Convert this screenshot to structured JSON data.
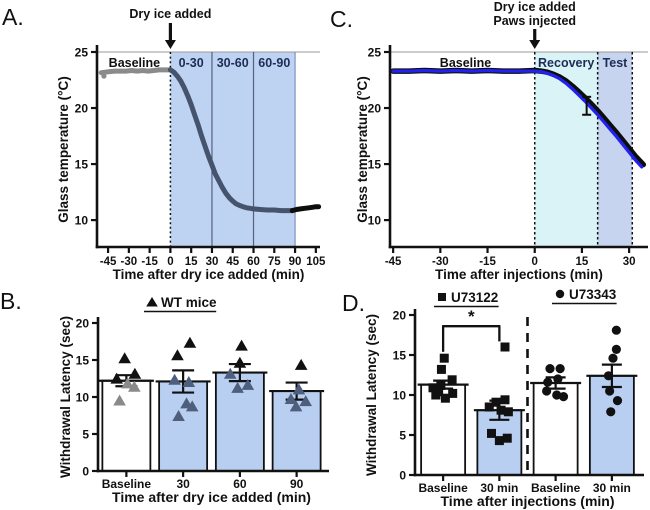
{
  "figure": {
    "background": "#ffffff"
  },
  "panel_labels": {
    "a": "A.",
    "b": "B.",
    "c": "C.",
    "d": "D."
  },
  "colors": {
    "shade_blue": "#bed2f2",
    "recovery_cyan": "#d9f3f6",
    "test_blue": "#c6d4ef",
    "blue_line": "#2222ee",
    "gray_line": "#8b8b8b",
    "slate_line": "#46536c",
    "black": "#111111",
    "gray_point": "#8a8a8a",
    "slate_point": "#4e5e7d",
    "region_label_navy": "#1e2d55"
  },
  "chart_data": [
    {
      "id": "A",
      "type": "line",
      "xlabel": "Time after dry ice added (min)",
      "ylabel": "Glass temperature (°C)",
      "xlim": [
        -53,
        108
      ],
      "ylim": [
        7.6,
        25
      ],
      "xticks": [
        -45,
        -30,
        -15,
        0,
        15,
        30,
        45,
        60,
        75,
        90,
        105
      ],
      "yticks": [
        10,
        15,
        20,
        25
      ],
      "annotation": {
        "lines": [
          "Dry ice added"
        ],
        "arrow_x": 0
      },
      "regions": [
        {
          "x0": 0,
          "x1": 90,
          "fill": "#bed2f2"
        }
      ],
      "vlines": [
        {
          "x": 0,
          "color": "#111111",
          "width": 1.5,
          "dash": "2,2.6"
        },
        {
          "x": 30,
          "color": "#54627f",
          "width": 1.2,
          "dash": ""
        },
        {
          "x": 60,
          "color": "#54627f",
          "width": 1.2,
          "dash": ""
        },
        {
          "x": 90,
          "color": "#7e93c2",
          "width": 1.2,
          "dash": ""
        }
      ],
      "region_labels": [
        {
          "text": "Baseline",
          "x": -26,
          "color": "#111111"
        },
        {
          "text": "0-30",
          "x": 15,
          "color": "#1e2d55"
        },
        {
          "text": "30-60",
          "x": 45,
          "color": "#1e2d55"
        },
        {
          "text": "60-90",
          "x": 75,
          "color": "#1e2d55"
        }
      ],
      "series": [
        {
          "name": "baseline-gray",
          "color": "#8b8b8b",
          "width": 5,
          "points": [
            [
              -50,
              23.15
            ],
            [
              -47,
              23.2
            ],
            [
              -44,
              23.25
            ],
            [
              -40,
              23.3
            ],
            [
              -36,
              23.3
            ],
            [
              -32,
              23.3
            ],
            [
              -28,
              23.35
            ],
            [
              -24,
              23.3
            ],
            [
              -20,
              23.35
            ],
            [
              -16,
              23.3
            ],
            [
              -12,
              23.35
            ],
            [
              -8,
              23.4
            ],
            [
              -4,
              23.4
            ],
            [
              0,
              23.4
            ]
          ]
        },
        {
          "name": "cooling-slate",
          "color": "#46536c",
          "width": 5,
          "points": [
            [
              0,
              23.4
            ],
            [
              2.5,
              23.2
            ],
            [
              5,
              22.85
            ],
            [
              7.5,
              22.4
            ],
            [
              10,
              21.8
            ],
            [
              12.5,
              21.1
            ],
            [
              15,
              20.3
            ],
            [
              17.5,
              19.4
            ],
            [
              20,
              18.5
            ],
            [
              22.5,
              17.5
            ],
            [
              25,
              16.6
            ],
            [
              27.5,
              15.7
            ],
            [
              30,
              14.9
            ],
            [
              32.5,
              14.1
            ],
            [
              35,
              13.5
            ],
            [
              37.5,
              12.9
            ],
            [
              40,
              12.4
            ],
            [
              42.5,
              12.0
            ],
            [
              45,
              11.7
            ],
            [
              47.5,
              11.45
            ],
            [
              50,
              11.3
            ],
            [
              52.5,
              11.2
            ],
            [
              55,
              11.1
            ],
            [
              57.5,
              11.05
            ],
            [
              60,
              11.0
            ],
            [
              65,
              10.95
            ],
            [
              70,
              10.9
            ],
            [
              75,
              10.9
            ],
            [
              80,
              10.85
            ],
            [
              85,
              10.85
            ],
            [
              88,
              10.85
            ]
          ]
        },
        {
          "name": "post-black",
          "color": "#0d0d0d",
          "width": 5,
          "points": [
            [
              88,
              10.85
            ],
            [
              91,
              10.95
            ],
            [
              94,
              11.0
            ],
            [
              97,
              11.05
            ],
            [
              100,
              11.1
            ],
            [
              103,
              11.15
            ],
            [
              105,
              11.2
            ],
            [
              107,
              11.2
            ]
          ]
        }
      ],
      "outliers": [
        {
          "x": -48,
          "y": 22.85,
          "color": "#8b8b8b"
        }
      ],
      "error_bars": []
    },
    {
      "id": "C",
      "type": "line",
      "xlabel": "Time after injections (min)",
      "ylabel": "Glass temperature (°C)",
      "xlim": [
        -46,
        36
      ],
      "ylim": [
        7.6,
        25
      ],
      "xticks": [
        -45,
        -30,
        -15,
        0,
        15,
        30
      ],
      "yticks": [
        10,
        15,
        20,
        25
      ],
      "annotation": {
        "lines": [
          "Dry ice added",
          "Paws injected"
        ],
        "arrow_x": 0
      },
      "regions": [
        {
          "x0": 0,
          "x1": 20,
          "fill": "#d9f3f6"
        },
        {
          "x0": 20,
          "x1": 31,
          "fill": "#c6d4ef"
        }
      ],
      "vlines": [
        {
          "x": 0,
          "color": "#111111",
          "width": 1.5,
          "dash": "2.5,2.5"
        },
        {
          "x": 20,
          "color": "#111111",
          "width": 1.5,
          "dash": "2.5,2.5"
        },
        {
          "x": 31,
          "color": "#111111",
          "width": 1.5,
          "dash": "2.5,2.5"
        }
      ],
      "region_labels": [
        {
          "text": "Baseline",
          "x": -22,
          "color": "#111111"
        },
        {
          "text": "Recovery",
          "x": 10,
          "color": "#1e2d55"
        },
        {
          "text": "Test",
          "x": 25.5,
          "color": "#1e2d55"
        }
      ],
      "series": [
        {
          "name": "vehicle-black",
          "color": "#0d0d0d",
          "width": 5.5,
          "points": [
            [
              -45,
              23.3
            ],
            [
              -40,
              23.3
            ],
            [
              -35,
              23.35
            ],
            [
              -30,
              23.3
            ],
            [
              -25,
              23.35
            ],
            [
              -20,
              23.3
            ],
            [
              -15,
              23.35
            ],
            [
              -10,
              23.3
            ],
            [
              -5,
              23.3
            ],
            [
              0,
              23.35
            ],
            [
              2,
              23.3
            ],
            [
              4,
              23.2
            ],
            [
              6,
              23.0
            ],
            [
              8,
              22.75
            ],
            [
              10,
              22.4
            ],
            [
              12,
              21.95
            ],
            [
              14,
              21.45
            ],
            [
              16,
              20.9
            ],
            [
              18,
              20.35
            ],
            [
              20,
              19.75
            ],
            [
              22,
              19.1
            ],
            [
              24,
              18.45
            ],
            [
              26,
              17.8
            ],
            [
              28,
              17.1
            ],
            [
              30,
              16.4
            ],
            [
              32,
              15.7
            ],
            [
              34,
              15.1
            ],
            [
              34.5,
              14.95
            ]
          ]
        },
        {
          "name": "injected-blue",
          "color": "#2222ee",
          "width": 3.2,
          "points": [
            [
              -45,
              23.3
            ],
            [
              -40,
              23.3
            ],
            [
              -35,
              23.35
            ],
            [
              -30,
              23.3
            ],
            [
              -25,
              23.35
            ],
            [
              -20,
              23.3
            ],
            [
              -15,
              23.35
            ],
            [
              -10,
              23.3
            ],
            [
              -5,
              23.3
            ],
            [
              0,
              23.3
            ],
            [
              2,
              23.25
            ],
            [
              4,
              23.1
            ],
            [
              6,
              22.9
            ],
            [
              8,
              22.6
            ],
            [
              10,
              22.2
            ],
            [
              12,
              21.7
            ],
            [
              14,
              21.15
            ],
            [
              16,
              20.6
            ],
            [
              18,
              20.0
            ],
            [
              20,
              19.4
            ],
            [
              22,
              18.75
            ],
            [
              24,
              18.1
            ],
            [
              26,
              17.45
            ],
            [
              28,
              16.75
            ],
            [
              30,
              16.05
            ],
            [
              32,
              15.35
            ],
            [
              34,
              14.75
            ]
          ]
        }
      ],
      "outliers": [],
      "error_bars": [
        {
          "x": 16.5,
          "y": 20.2,
          "err": 0.8
        }
      ]
    },
    {
      "id": "B",
      "type": "bar",
      "xlabel": "Time after dry ice added (min)",
      "ylabel": "Withdrawal Latency (sec)",
      "ylim": [
        0,
        20
      ],
      "yticks": [
        0,
        5,
        10,
        15,
        20
      ],
      "categories": [
        "Baseline",
        "30",
        "60",
        "90"
      ],
      "legend": [
        {
          "marker": "triangle",
          "label": "WT mice"
        }
      ],
      "markers": [
        "triangle",
        "triangle",
        "triangle",
        "triangle"
      ],
      "bars": [
        {
          "mean": 12.2,
          "sem": 0.75,
          "fill": "#ffffff"
        },
        {
          "mean": 12.1,
          "sem": 1.5,
          "fill": "#b9cff2"
        },
        {
          "mean": 13.3,
          "sem": 1.15,
          "fill": "#b9cff2"
        },
        {
          "mean": 10.8,
          "sem": 1.15,
          "fill": "#b9cff2"
        }
      ],
      "points": [
        [
          {
            "v": 15.1,
            "dx": -0.03,
            "color": "#111111"
          },
          {
            "v": 13.0,
            "dx": 0.15,
            "color": "#111111"
          },
          {
            "v": 12.35,
            "dx": -0.17,
            "color": "#111111"
          },
          {
            "v": 11.7,
            "dx": 0.02,
            "color": "#8a8a8a"
          },
          {
            "v": 11.25,
            "dx": 0.14,
            "color": "#8a8a8a"
          },
          {
            "v": 9.4,
            "dx": -0.12,
            "color": "#8a8a8a"
          }
        ],
        [
          {
            "v": 17.2,
            "dx": 0.12,
            "color": "#111111"
          },
          {
            "v": 15.5,
            "dx": -0.1,
            "color": "#111111"
          },
          {
            "v": 12.2,
            "dx": -0.15,
            "color": "#4e5e7d"
          },
          {
            "v": 11.9,
            "dx": 0.1,
            "color": "#4e5e7d"
          },
          {
            "v": 9.0,
            "dx": 0.06,
            "color": "#4e5e7d"
          },
          {
            "v": 8.6,
            "dx": 0.16,
            "color": "#4e5e7d"
          },
          {
            "v": 7.3,
            "dx": -0.08,
            "color": "#4e5e7d"
          }
        ],
        [
          {
            "v": 16.8,
            "dx": 0.03,
            "color": "#111111"
          },
          {
            "v": 14.5,
            "dx": 0.0,
            "color": "#111111"
          },
          {
            "v": 13.0,
            "dx": -0.17,
            "color": "#4e5e7d"
          },
          {
            "v": 11.5,
            "dx": 0.14,
            "color": "#4e5e7d"
          },
          {
            "v": 11.1,
            "dx": -0.04,
            "color": "#4e5e7d"
          }
        ],
        [
          {
            "v": 14.2,
            "dx": 0.08,
            "color": "#111111"
          },
          {
            "v": 10.9,
            "dx": 0.04,
            "color": "#4e5e7d"
          },
          {
            "v": 9.6,
            "dx": -0.1,
            "color": "#4e5e7d"
          },
          {
            "v": 9.3,
            "dx": 0.16,
            "color": "#4e5e7d"
          },
          {
            "v": 8.6,
            "dx": -0.01,
            "color": "#4e5e7d"
          }
        ]
      ],
      "separator_after": null,
      "sig": null
    },
    {
      "id": "D",
      "type": "bar",
      "xlabel": "Time after injections (min)",
      "ylabel": "Withdrawal Latency (sec)",
      "ylim": [
        0,
        20
      ],
      "yticks": [
        0,
        5,
        10,
        15,
        20
      ],
      "categories": [
        "Baseline",
        "30 min",
        "Baseline",
        "30 min"
      ],
      "legend": [
        {
          "marker": "square",
          "label": "U73122"
        },
        {
          "marker": "circle",
          "label": "U73343"
        }
      ],
      "markers": [
        "square",
        "square",
        "circle",
        "circle"
      ],
      "bars": [
        {
          "mean": 11.3,
          "sem": 0.5,
          "fill": "#ffffff"
        },
        {
          "mean": 8.1,
          "sem": 1.2,
          "fill": "#b9cff2"
        },
        {
          "mean": 11.5,
          "sem": 0.7,
          "fill": "#ffffff"
        },
        {
          "mean": 12.4,
          "sem": 1.4,
          "fill": "#b9cff2"
        }
      ],
      "points": [
        [
          {
            "v": 14.6,
            "dx": 0.02,
            "color": "#111111"
          },
          {
            "v": 13.2,
            "dx": -0.03,
            "color": "#111111"
          },
          {
            "v": 11.9,
            "dx": 0.16,
            "color": "#111111"
          },
          {
            "v": 11.2,
            "dx": -0.04,
            "color": "#111111"
          },
          {
            "v": 10.9,
            "dx": -0.18,
            "color": "#111111"
          },
          {
            "v": 10.4,
            "dx": -0.08,
            "color": "#111111"
          },
          {
            "v": 10.2,
            "dx": 0.17,
            "color": "#111111"
          },
          {
            "v": 10.0,
            "dx": -0.13,
            "color": "#111111"
          },
          {
            "v": 9.6,
            "dx": 0.04,
            "color": "#111111"
          }
        ],
        [
          {
            "v": 16.0,
            "dx": 0.1,
            "color": "#111111"
          },
          {
            "v": 9.4,
            "dx": 0.1,
            "color": "#111111"
          },
          {
            "v": 9.1,
            "dx": -0.06,
            "color": "#111111"
          },
          {
            "v": 8.5,
            "dx": -0.18,
            "color": "#111111"
          },
          {
            "v": 8.1,
            "dx": 0.03,
            "color": "#111111"
          },
          {
            "v": 7.9,
            "dx": 0.16,
            "color": "#111111"
          },
          {
            "v": 5.2,
            "dx": -0.14,
            "color": "#111111"
          },
          {
            "v": 4.6,
            "dx": 0.14,
            "color": "#111111"
          },
          {
            "v": 4.3,
            "dx": 0.0,
            "color": "#111111"
          }
        ],
        [
          {
            "v": 13.3,
            "dx": -0.1,
            "color": "#111111"
          },
          {
            "v": 13.3,
            "dx": 0.08,
            "color": "#111111"
          },
          {
            "v": 12.0,
            "dx": 0.04,
            "color": "#111111"
          },
          {
            "v": 11.6,
            "dx": -0.14,
            "color": "#111111"
          },
          {
            "v": 10.5,
            "dx": -0.16,
            "color": "#111111"
          },
          {
            "v": 10.0,
            "dx": 0.02,
            "color": "#111111"
          },
          {
            "v": 9.8,
            "dx": 0.14,
            "color": "#111111"
          }
        ],
        [
          {
            "v": 18.1,
            "dx": 0.08,
            "color": "#111111"
          },
          {
            "v": 15.7,
            "dx": 0.08,
            "color": "#111111"
          },
          {
            "v": 14.6,
            "dx": 0.02,
            "color": "#111111"
          },
          {
            "v": 12.4,
            "dx": -0.06,
            "color": "#111111"
          },
          {
            "v": 10.5,
            "dx": -0.04,
            "color": "#111111"
          },
          {
            "v": 9.3,
            "dx": 0.1,
            "color": "#111111"
          },
          {
            "v": 7.9,
            "dx": -0.02,
            "color": "#111111"
          }
        ]
      ],
      "separator_after": 1,
      "sig": {
        "from": 0,
        "to": 1,
        "y": 18.6,
        "left_drop": 15.4,
        "right_drop": 16.7,
        "label": "*"
      }
    }
  ]
}
